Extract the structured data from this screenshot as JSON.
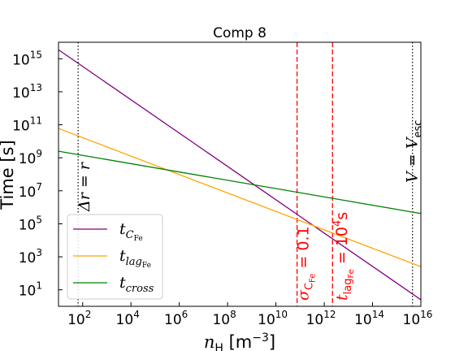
{
  "chart_data": {
    "type": "line",
    "title": "Comp 8",
    "xlabel": "n_H [m^-3]",
    "ylabel": "Time [s]",
    "xscale": "log",
    "yscale": "log",
    "xlim": [
      10.0,
      1e+16
    ],
    "ylim": [
      1.0,
      1e+16
    ],
    "x_ticks": [
      {
        "value": 100.0,
        "base": "10",
        "exp": "2"
      },
      {
        "value": 10000.0,
        "base": "10",
        "exp": "4"
      },
      {
        "value": 1000000.0,
        "base": "10",
        "exp": "6"
      },
      {
        "value": 100000000.0,
        "base": "10",
        "exp": "8"
      },
      {
        "value": 10000000000.0,
        "base": "10",
        "exp": "10"
      },
      {
        "value": 1000000000000.0,
        "base": "10",
        "exp": "12"
      },
      {
        "value": 100000000000000.0,
        "base": "10",
        "exp": "14"
      },
      {
        "value": 1e+16,
        "base": "10",
        "exp": "16"
      }
    ],
    "y_ticks": [
      {
        "value": 10.0,
        "base": "10",
        "exp": "1"
      },
      {
        "value": 1000.0,
        "base": "10",
        "exp": "3"
      },
      {
        "value": 100000.0,
        "base": "10",
        "exp": "5"
      },
      {
        "value": 10000000.0,
        "base": "10",
        "exp": "7"
      },
      {
        "value": 1000000000.0,
        "base": "10",
        "exp": "9"
      },
      {
        "value": 100000000000.0,
        "base": "10",
        "exp": "11"
      },
      {
        "value": 10000000000000.0,
        "base": "10",
        "exp": "13"
      },
      {
        "value": 1000000000000000.0,
        "base": "10",
        "exp": "15"
      }
    ],
    "series": [
      {
        "name": "t_CFe",
        "label_main": "t",
        "label_sub": "C",
        "label_subsub": "Fe",
        "color": "#800080",
        "x": [
          10,
          1e+16
        ],
        "y": [
          3500000000000000.0,
          2.5
        ]
      },
      {
        "name": "t_lagFe",
        "label_main": "t",
        "label_sub": "lag",
        "label_subsub": "Fe",
        "color": "#FFA500",
        "x": [
          10,
          1e+16
        ],
        "y": [
          60000000000.0,
          250
        ]
      },
      {
        "name": "t_cross",
        "label_main": "t",
        "label_sub": "cross",
        "label_subsub": "",
        "color": "#008000",
        "x": [
          10,
          1e+16
        ],
        "y": [
          2500000000.0,
          420000.0
        ]
      }
    ],
    "vlines": [
      {
        "x": 65.0,
        "color": "#000000",
        "style": "dotted",
        "label": "Δr = r"
      },
      {
        "x": 75000000000.0,
        "color": "#ff0000",
        "style": "dashed",
        "label_main": "σ",
        "label_sub": "C",
        "label_subsub": "Fe",
        "label_rest": " = 0.1"
      },
      {
        "x": 2200000000000.0,
        "color": "#ff0000",
        "style": "dashed",
        "label_main": "t",
        "label_sub": "lag",
        "label_subsub": "Fe",
        "label_rest": " = 10",
        "label_sup": "4",
        "label_unit": "s"
      },
      {
        "x": 4500000000000000.0,
        "color": "#000000",
        "style": "dotted",
        "label_main": "V = V",
        "label_sub": "esc"
      }
    ],
    "legend": {
      "placement": "lower-left"
    },
    "grid": false
  }
}
